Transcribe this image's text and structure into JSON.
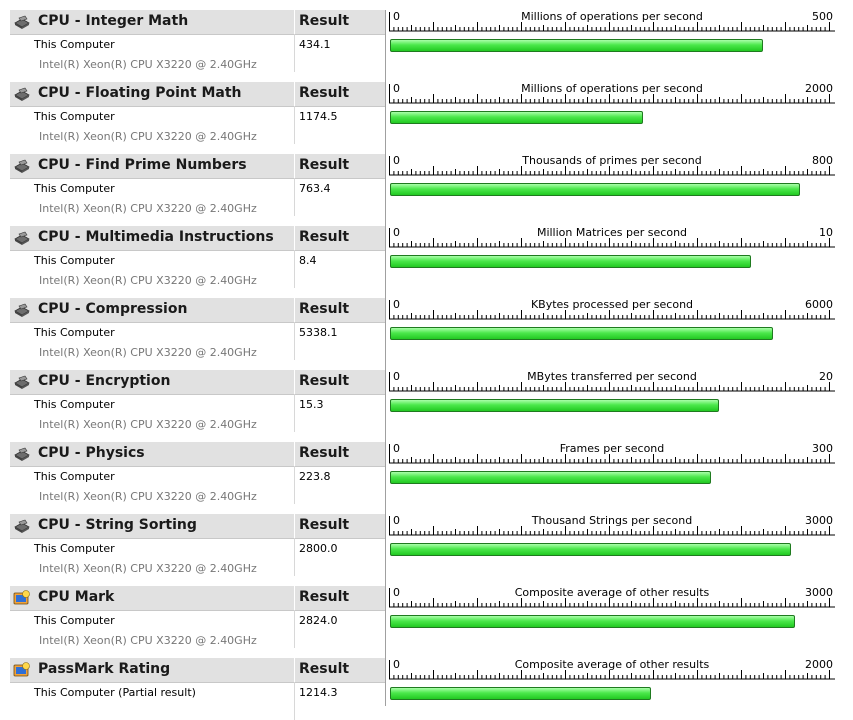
{
  "result_header_label": "Result",
  "colors": {
    "bar_fill": "#3fe03f",
    "bar_border": "#1f7a1f",
    "header_bg": "#e1e1e1"
  },
  "tests": [
    {
      "icon": "cpu-chip-icon",
      "title": "CPU - Integer Math",
      "computer": "This Computer",
      "cpu": "Intel(R) Xeon(R) CPU X3220 @ 2.40GHz",
      "value": "434.1",
      "value_num": 434.1,
      "scale_min": "0",
      "scale_max": "500",
      "scale_max_num": 500,
      "unit": "Millions of operations per second"
    },
    {
      "icon": "cpu-chip-icon",
      "title": "CPU - Floating Point Math",
      "computer": "This Computer",
      "cpu": "Intel(R) Xeon(R) CPU X3220 @ 2.40GHz",
      "value": "1174.5",
      "value_num": 1174.5,
      "scale_min": "0",
      "scale_max": "2000",
      "scale_max_num": 2000,
      "unit": "Millions of operations per second"
    },
    {
      "icon": "cpu-chip-icon",
      "title": "CPU - Find Prime Numbers",
      "computer": "This Computer",
      "cpu": "Intel(R) Xeon(R) CPU X3220 @ 2.40GHz",
      "value": "763.4",
      "value_num": 763.4,
      "scale_min": "0",
      "scale_max": "800",
      "scale_max_num": 800,
      "unit": "Thousands of primes per second"
    },
    {
      "icon": "cpu-chip-icon",
      "title": "CPU - Multimedia Instructions",
      "computer": "This Computer",
      "cpu": "Intel(R) Xeon(R) CPU X3220 @ 2.40GHz",
      "value": "8.4",
      "value_num": 8.4,
      "scale_min": "0",
      "scale_max": "10",
      "scale_max_num": 10,
      "unit": "Million Matrices per second"
    },
    {
      "icon": "cpu-chip-icon",
      "title": "CPU - Compression",
      "computer": "This Computer",
      "cpu": "Intel(R) Xeon(R) CPU X3220 @ 2.40GHz",
      "value": "5338.1",
      "value_num": 5338.1,
      "scale_min": "0",
      "scale_max": "6000",
      "scale_max_num": 6000,
      "unit": "KBytes processed per second"
    },
    {
      "icon": "cpu-chip-icon",
      "title": "CPU - Encryption",
      "computer": "This Computer",
      "cpu": "Intel(R) Xeon(R) CPU X3220 @ 2.40GHz",
      "value": "15.3",
      "value_num": 15.3,
      "scale_min": "0",
      "scale_max": "20",
      "scale_max_num": 20,
      "unit": "MBytes transferred per second"
    },
    {
      "icon": "cpu-chip-icon",
      "title": "CPU - Physics",
      "computer": "This Computer",
      "cpu": "Intel(R) Xeon(R) CPU X3220 @ 2.40GHz",
      "value": "223.8",
      "value_num": 223.8,
      "scale_min": "0",
      "scale_max": "300",
      "scale_max_num": 300,
      "unit": "Frames per second"
    },
    {
      "icon": "cpu-chip-icon",
      "title": "CPU - String Sorting",
      "computer": "This Computer",
      "cpu": "Intel(R) Xeon(R) CPU X3220 @ 2.40GHz",
      "value": "2800.0",
      "value_num": 2800.0,
      "scale_min": "0",
      "scale_max": "3000",
      "scale_max_num": 3000,
      "unit": "Thousand Strings per second"
    },
    {
      "icon": "mark-gauge-icon",
      "title": "CPU Mark",
      "computer": "This Computer",
      "cpu": "Intel(R) Xeon(R) CPU X3220 @ 2.40GHz",
      "value": "2824.0",
      "value_num": 2824.0,
      "scale_min": "0",
      "scale_max": "3000",
      "scale_max_num": 3000,
      "unit": "Composite average of other results"
    },
    {
      "icon": "mark-gauge-icon",
      "title": "PassMark Rating",
      "computer": "This Computer (Partial result)",
      "cpu": "",
      "value": "1214.3",
      "value_num": 1214.3,
      "scale_min": "0",
      "scale_max": "2000",
      "scale_max_num": 2000,
      "unit": "Composite average of other results"
    }
  ]
}
